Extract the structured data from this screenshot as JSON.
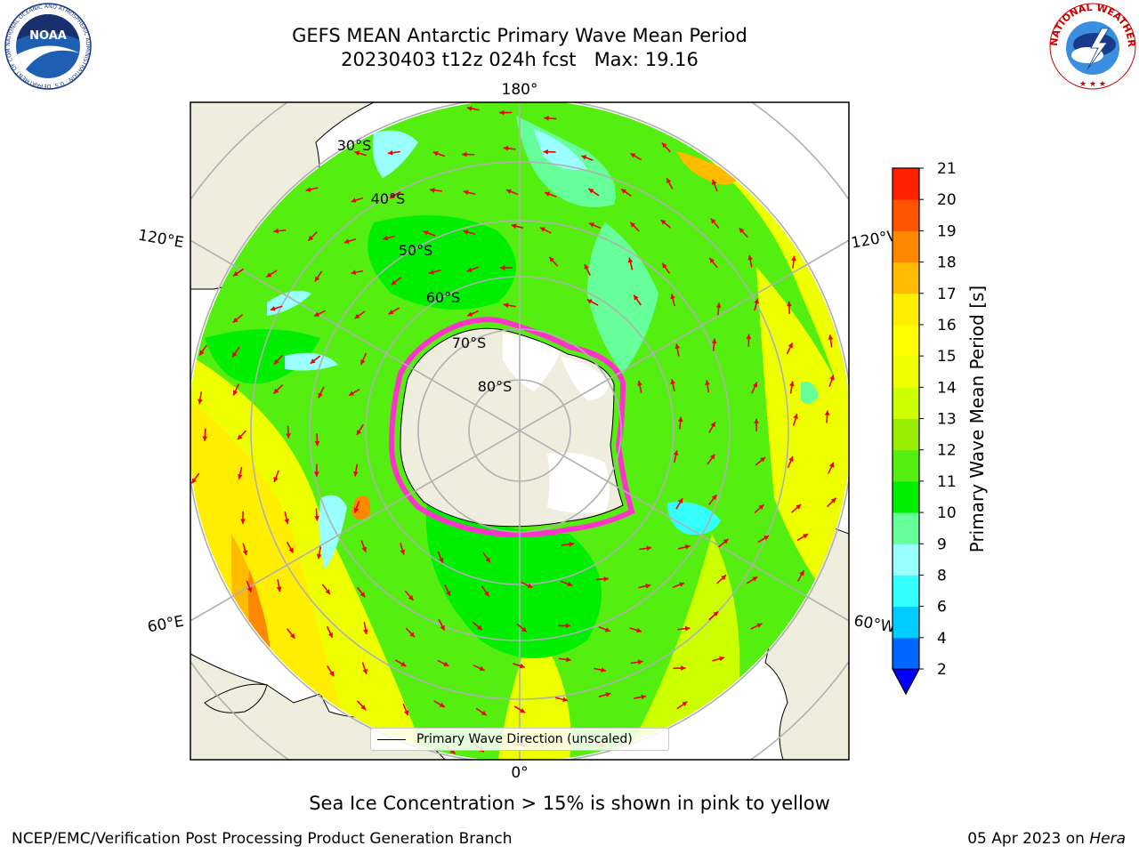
{
  "title": {
    "line1": "GEFS MEAN Antarctic Primary Wave Mean Period",
    "line2": "20230403 t12z 024h fcst   Max: 19.16"
  },
  "logos": {
    "left": "noaa-logo",
    "left_text": "NOAA",
    "left_ring_text": "NATIONAL OCEANIC AND ATMOSPHERIC ADMINISTRATION · U.S. DEPARTMENT OF COMMERCE ·",
    "right": "national-weather-service-logo",
    "right_ring_text": "NATIONAL WEATHER SERVICE"
  },
  "map": {
    "projection": "south-polar-stereographic",
    "longitude_labels": {
      "top": "180°",
      "bottom": "0°",
      "upper_left": "120°E",
      "upper_right": "120°W",
      "lower_left": "60°E",
      "lower_right": "60°W"
    },
    "latitude_labels": [
      "30°S",
      "40°S",
      "50°S",
      "60°S",
      "70°S",
      "80°S"
    ],
    "legend_label": "Primary Wave Direction (unscaled)",
    "colors": {
      "land": "#efedde",
      "ice": "#ffffff",
      "ice_edge": "#ff33cc",
      "arrows": "#ee0000",
      "grid": "#b0b0b0"
    }
  },
  "colorbar": {
    "label": "Primary Wave Mean Period [s]",
    "ticks": [
      "2",
      "4",
      "6",
      "8",
      "9",
      "10",
      "11",
      "12",
      "13",
      "14",
      "15",
      "16",
      "17",
      "18",
      "19",
      "20",
      "21"
    ],
    "colors": [
      "#0066ff",
      "#00ccff",
      "#33ffff",
      "#99ffff",
      "#66ff99",
      "#00ee00",
      "#55ee11",
      "#99ee00",
      "#ccff00",
      "#eeff00",
      "#ffff00",
      "#ffee00",
      "#ffbb00",
      "#ff8800",
      "#ff5500",
      "#ff2200"
    ],
    "extend_color": "#0000ff"
  },
  "sea_ice_note": "Sea Ice Concentration > 15% is shown in pink to yellow",
  "footer": {
    "left": "NCEP/EMC/Verification Post Processing Product Generation Branch",
    "right_date": "05 Apr 2023 on",
    "right_host": "Hera"
  }
}
